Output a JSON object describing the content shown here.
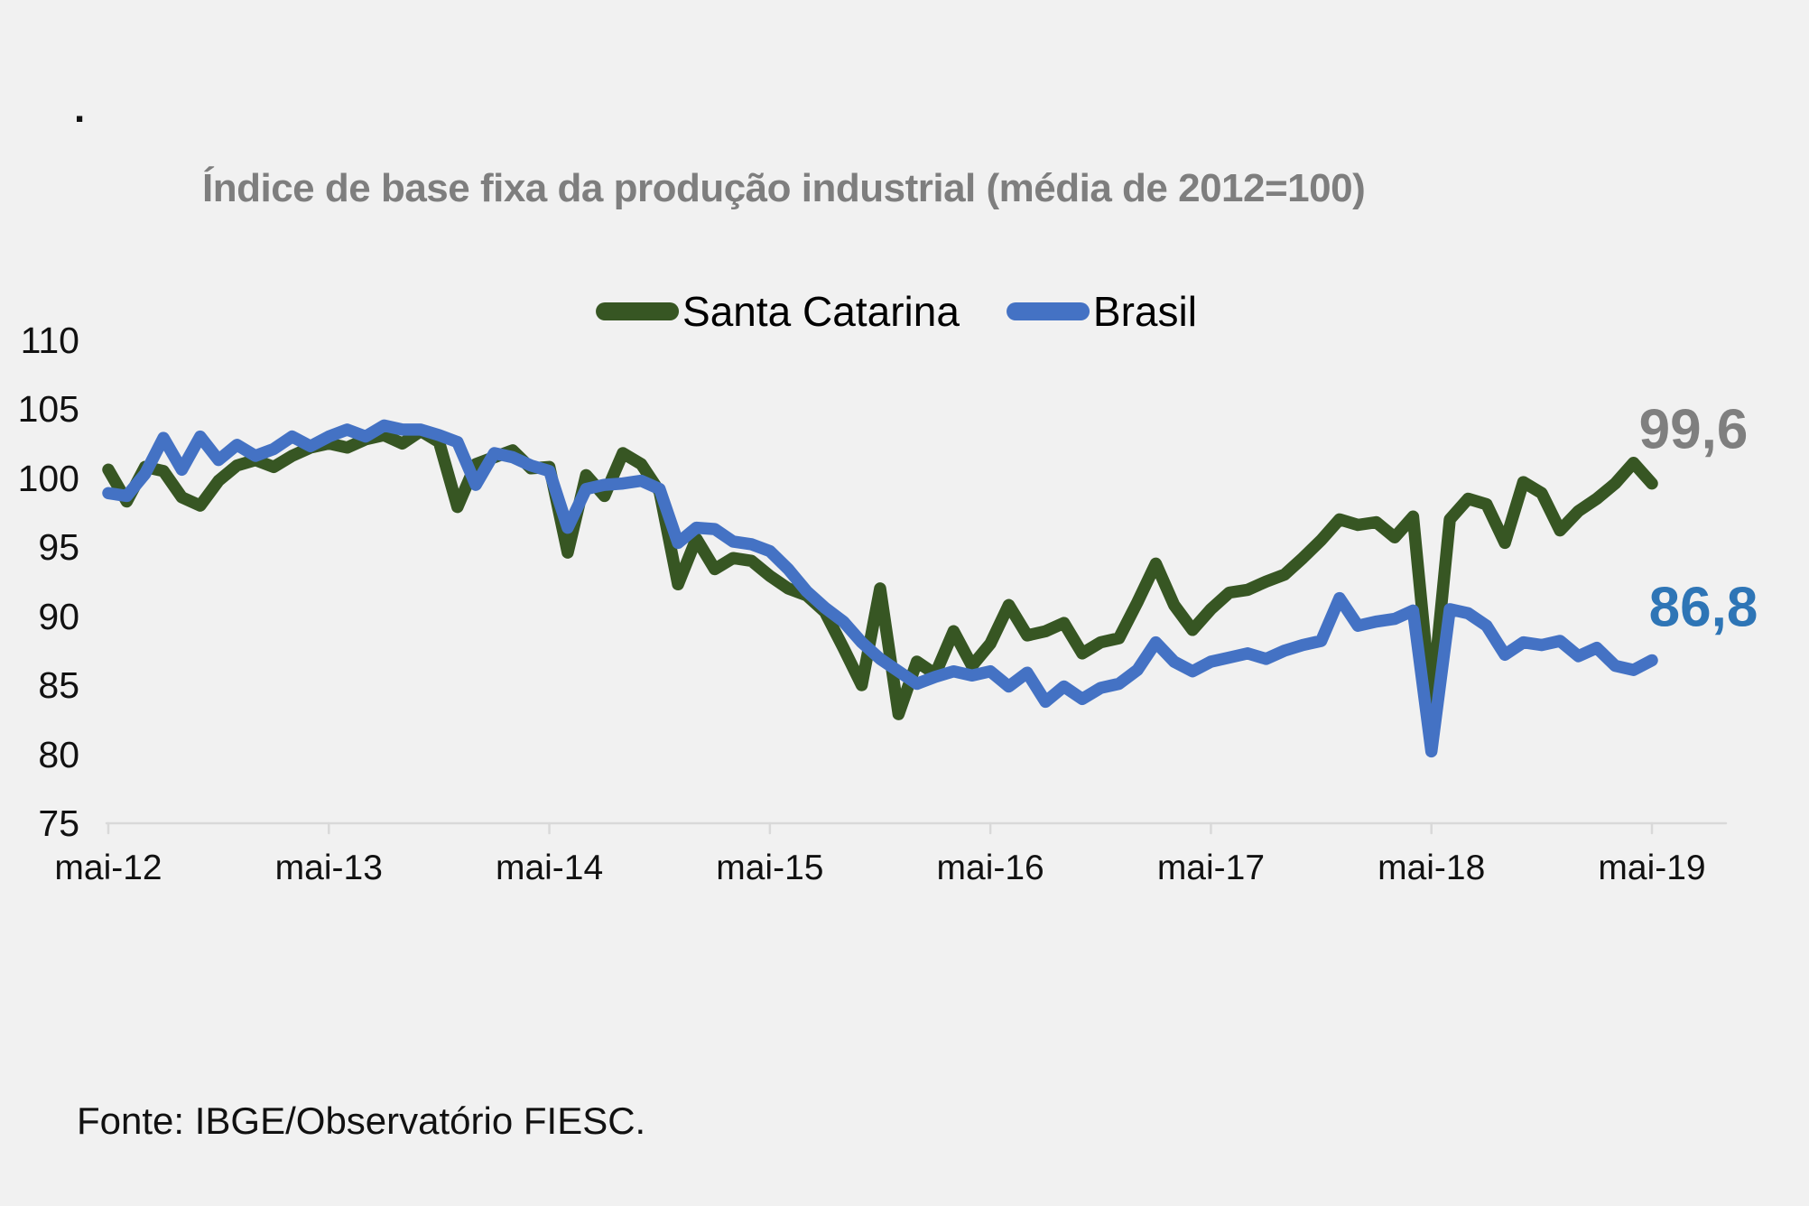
{
  "page": {
    "stray_mark": ".",
    "background_color": "#F1F1F1"
  },
  "chart_data": {
    "type": "line",
    "title": "Índice de base fixa da produção industrial (média de 2012=100)",
    "title_color": "#7E7E7E",
    "grid": false,
    "legend_position": "top-center",
    "ylim": [
      75,
      110
    ],
    "y_ticks": [
      110,
      105,
      100,
      95,
      90,
      85,
      80,
      75
    ],
    "x_tick_labels": [
      "mai-12",
      "mai-13",
      "mai-14",
      "mai-15",
      "mai-16",
      "mai-17",
      "mai-18",
      "mai-19"
    ],
    "x_months_between_ticks": 12,
    "axis_color": "#D9D9D9",
    "series": [
      {
        "name": "Santa Catarina",
        "color": "#375623",
        "end_label": "99,6",
        "end_label_color": "#7F7F7F",
        "values": [
          100.6,
          98.3,
          100.8,
          100.5,
          98.6,
          98.0,
          99.8,
          100.9,
          101.3,
          100.8,
          101.6,
          102.2,
          102.5,
          102.2,
          102.8,
          103.1,
          102.5,
          103.4,
          102.6,
          97.9,
          101.0,
          101.5,
          102.0,
          100.7,
          100.8,
          94.6,
          100.2,
          98.7,
          101.8,
          101.0,
          99.0,
          92.3,
          95.6,
          93.4,
          94.2,
          94.0,
          92.9,
          92.0,
          91.5,
          90.3,
          87.7,
          85.0,
          92.0,
          82.9,
          86.7,
          85.8,
          88.9,
          86.4,
          88.0,
          90.8,
          88.6,
          88.9,
          89.5,
          87.3,
          88.1,
          88.4,
          91.0,
          93.8,
          90.8,
          89.0,
          90.5,
          91.7,
          91.9,
          92.5,
          93.0,
          94.2,
          95.5,
          97.0,
          96.6,
          96.8,
          95.7,
          97.2,
          83.5,
          97.0,
          98.5,
          98.1,
          95.3,
          99.7,
          98.9,
          96.2,
          97.6,
          98.5,
          99.6,
          101.1,
          99.6
        ]
      },
      {
        "name": "Brasil",
        "color": "#4472C4",
        "end_label": "86,8",
        "end_label_color": "#2E75B6",
        "values": [
          98.9,
          98.7,
          100.3,
          102.9,
          100.6,
          103.0,
          101.3,
          102.4,
          101.6,
          102.1,
          103.0,
          102.3,
          103.0,
          103.5,
          103.0,
          103.8,
          103.5,
          103.5,
          103.1,
          102.6,
          99.5,
          101.8,
          101.5,
          100.9,
          100.5,
          96.4,
          99.2,
          99.5,
          99.6,
          99.8,
          99.2,
          95.3,
          96.4,
          96.3,
          95.4,
          95.2,
          94.7,
          93.4,
          91.8,
          90.6,
          89.6,
          88.1,
          86.9,
          86.0,
          85.1,
          85.6,
          86.0,
          85.7,
          86.0,
          84.9,
          85.9,
          83.8,
          84.9,
          84.0,
          84.8,
          85.1,
          86.1,
          88.1,
          86.7,
          86.0,
          86.7,
          87.0,
          87.3,
          86.9,
          87.5,
          87.9,
          88.2,
          91.3,
          89.3,
          89.6,
          89.8,
          90.4,
          80.2,
          90.5,
          90.2,
          89.3,
          87.2,
          88.1,
          87.9,
          88.2,
          87.1,
          87.7,
          86.4,
          86.1,
          86.8
        ]
      }
    ]
  },
  "footer": {
    "source": "Fonte: IBGE/Observatório FIESC."
  }
}
